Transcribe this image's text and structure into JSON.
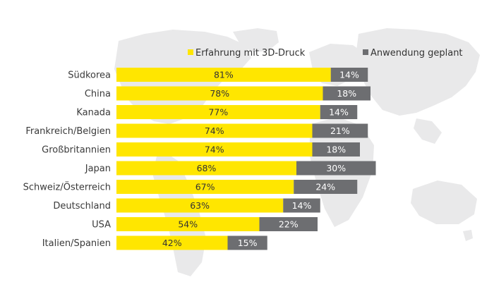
{
  "chart_data": {
    "type": "bar",
    "orientation": "horizontal",
    "stacked": true,
    "categories": [
      "Südkorea",
      "China",
      "Kanada",
      "Frankreich/Belgien",
      "Großbritannien",
      "Japan",
      "Schweiz/Österreich",
      "Deutschland",
      "USA",
      "Italien/Spanien"
    ],
    "series": [
      {
        "name": "Erfahrung mit 3D-Druck",
        "color": "#ffe600",
        "values": [
          81,
          78,
          77,
          74,
          74,
          68,
          67,
          63,
          54,
          42
        ],
        "labels": [
          "81%",
          "78%",
          "77%",
          "74%",
          "74%",
          "68%",
          "67%",
          "63%",
          "54%",
          "42%"
        ]
      },
      {
        "name": "Anwendung geplant",
        "color": "#6d6e71",
        "values": [
          14,
          18,
          14,
          21,
          18,
          30,
          24,
          14,
          22,
          15
        ],
        "labels": [
          "14%",
          "18%",
          "14%",
          "21%",
          "18%",
          "30%",
          "24%",
          "14%",
          "22%",
          "15%"
        ]
      }
    ],
    "legend_position": "top-right",
    "grid": false,
    "background_image": "world-map"
  }
}
